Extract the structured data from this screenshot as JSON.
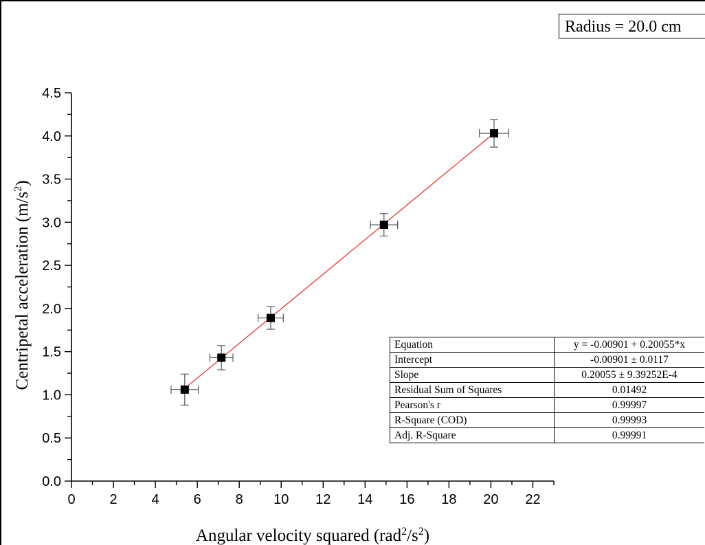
{
  "chart_data": {
    "type": "scatter",
    "xlabel_pre": "Angular velocity squared (rad",
    "xlabel_sup1": "2",
    "xlabel_mid": "/s",
    "xlabel_sup2": "2",
    "xlabel_post": ")",
    "ylabel_pre": "Centripetal acceleration (m/s",
    "ylabel_sup": "2",
    "ylabel_post": ")",
    "xlim": [
      0,
      23
    ],
    "ylim": [
      0,
      4.5
    ],
    "x_ticks": [
      0,
      2,
      4,
      6,
      8,
      10,
      12,
      14,
      16,
      18,
      20,
      22
    ],
    "x_tick_labels": [
      "0",
      "2",
      "4",
      "6",
      "8",
      "10",
      "12",
      "14",
      "16",
      "18",
      "20",
      "22"
    ],
    "y_ticks": [
      0,
      0.5,
      1,
      1.5,
      2,
      2.5,
      3,
      3.5,
      4,
      4.5
    ],
    "y_tick_labels": [
      "0.0",
      "0.5",
      "1.0",
      "1.5",
      "2.0",
      "2.5",
      "3.0",
      "3.5",
      "4.0",
      "4.5"
    ],
    "points": [
      {
        "x": 5.4,
        "y": 1.06,
        "xerr": 0.65,
        "yerr": 0.18
      },
      {
        "x": 7.15,
        "y": 1.43,
        "xerr": 0.55,
        "yerr": 0.14
      },
      {
        "x": 9.5,
        "y": 1.89,
        "xerr": 0.6,
        "yerr": 0.13
      },
      {
        "x": 14.9,
        "y": 2.97,
        "xerr": 0.65,
        "yerr": 0.13
      },
      {
        "x": 20.15,
        "y": 4.03,
        "xerr": 0.7,
        "yerr": 0.16
      }
    ],
    "fit": {
      "intercept": -0.00901,
      "slope": 0.20055,
      "x_range": [
        5.4,
        20.15
      ]
    },
    "colors": {
      "fit_line": "#e8382e",
      "marker": "#000000",
      "error_bar": "#555555"
    },
    "grid": false
  },
  "annotation": {
    "radius_label": "Radius = 20.0 cm"
  },
  "stats_table": [
    {
      "key": "Equation",
      "value": "y = -0.00901 + 0.20055*x"
    },
    {
      "key": "Intercept",
      "value": "-0.00901 ± 0.0117"
    },
    {
      "key": "Slope",
      "value": "0.20055 ± 9.39252E-4"
    },
    {
      "key": "Residual Sum of Squares",
      "value": "0.01492"
    },
    {
      "key": "Pearson's r",
      "value": "0.99997"
    },
    {
      "key": "R-Square (COD)",
      "value": "0.99993"
    },
    {
      "key": "Adj. R-Square",
      "value": "0.99991"
    }
  ]
}
